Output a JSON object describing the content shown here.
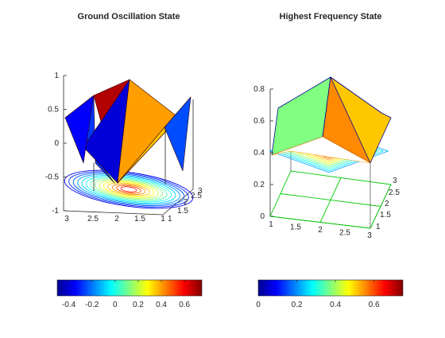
{
  "chart_data": [
    {
      "type": "surface3d",
      "title": "Ground Oscillation State",
      "xlabel": "",
      "ylabel": "",
      "zlabel": "",
      "grid_x": [
        1,
        2,
        3
      ],
      "grid_y": [
        1,
        2,
        3
      ],
      "z": [
        [
          -0.35,
          0.6,
          -0.35
        ],
        [
          0.6,
          -0.5,
          0.6
        ],
        [
          -0.35,
          0.6,
          -0.35
        ]
      ],
      "zlim": [
        -1,
        1
      ],
      "zticks": [
        "-1",
        "-0.5",
        "0",
        "0.5",
        "1"
      ],
      "xticks": [
        "3",
        "2.5",
        "2",
        "1.5",
        "1"
      ],
      "yticks": [
        "1",
        "1.5",
        "2",
        "2.5",
        "3"
      ],
      "contour_below": true,
      "colorbar": {
        "range": [
          -0.5,
          0.75
        ],
        "ticks": [
          "-0.4",
          "-0.2",
          "0",
          "0.2",
          "0.4",
          "0.6"
        ],
        "colormap": "jet"
      }
    },
    {
      "type": "surface3d",
      "title": "Highest Frequency State",
      "xlabel": "",
      "ylabel": "",
      "zlabel": "",
      "grid_x": [
        1,
        2,
        3
      ],
      "grid_y": [
        1,
        2,
        3
      ],
      "z": [
        [
          0.4,
          0.4,
          0.4
        ],
        [
          0.4,
          0.8,
          0.4
        ],
        [
          0.4,
          0.4,
          0.4
        ]
      ],
      "zlim": [
        0,
        0.8
      ],
      "zticks": [
        "0",
        "0.2",
        "0.4",
        "0.6",
        "0.8"
      ],
      "xticks": [
        "1",
        "1.5",
        "2",
        "2.5",
        "3"
      ],
      "yticks": [
        "1",
        "1.5",
        "2",
        "2.5",
        "3"
      ],
      "contour_below": true,
      "colorbar": {
        "range": [
          0,
          0.75
        ],
        "ticks": [
          "0",
          "0.2",
          "0.4",
          "0.6"
        ],
        "colormap": "jet"
      }
    }
  ],
  "colors": {
    "axis": "#262626",
    "grid": "#00cc00"
  }
}
